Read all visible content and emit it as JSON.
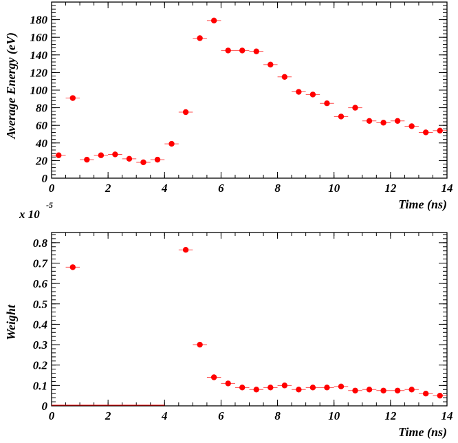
{
  "chart_data": [
    {
      "type": "scatter",
      "xlabel": "Time (ns)",
      "ylabel": "Average Energy (eV)",
      "xlim": [
        0,
        14
      ],
      "ylim": [
        0,
        200
      ],
      "x_ticks": [
        "0",
        "2",
        "4",
        "6",
        "8",
        "10",
        "12",
        "14"
      ],
      "y_ticks": [
        "0",
        "20",
        "40",
        "60",
        "80",
        "100",
        "120",
        "140",
        "160",
        "180"
      ],
      "marker_color": "#ff0000",
      "x_error_halfwidth": 0.25,
      "series": [
        {
          "x": [
            0.25,
            0.75,
            1.25,
            1.75,
            2.25,
            2.75,
            3.25,
            3.75,
            4.25,
            4.75,
            5.25,
            5.75,
            6.25,
            6.75,
            7.25,
            7.75,
            8.25,
            8.75,
            9.25,
            9.75,
            10.25,
            10.75,
            11.25,
            11.75,
            12.25,
            12.75,
            13.25,
            13.75
          ],
          "y": [
            26,
            91,
            21,
            26,
            27,
            22,
            18,
            21,
            39,
            75,
            159,
            179,
            145,
            145,
            144,
            129,
            115,
            98,
            95,
            85,
            70,
            80,
            65,
            63,
            65,
            59,
            52,
            54
          ]
        }
      ]
    },
    {
      "type": "scatter",
      "xlabel": "Time (ns)",
      "ylabel": "Weight",
      "scale_prefix": "x 10",
      "scale_exponent": "-5",
      "xlim": [
        0,
        14
      ],
      "ylim": [
        0,
        0.85
      ],
      "x_ticks": [
        "0",
        "2",
        "4",
        "6",
        "8",
        "10",
        "12",
        "14"
      ],
      "y_ticks": [
        "0",
        "0.1",
        "0.2",
        "0.3",
        "0.4",
        "0.5",
        "0.6",
        "0.7",
        "0.8"
      ],
      "marker_color": "#ff0000",
      "x_error_halfwidth": 0.25,
      "series": [
        {
          "x": [
            0.75,
            4.75,
            5.25,
            5.75,
            6.25,
            6.75,
            7.25,
            7.75,
            8.25,
            8.75,
            9.25,
            9.75,
            10.25,
            10.75,
            11.25,
            11.75,
            12.25,
            12.75,
            13.25,
            13.75
          ],
          "y": [
            0.68,
            0.765,
            0.3,
            0.14,
            0.11,
            0.09,
            0.08,
            0.09,
            0.1,
            0.08,
            0.09,
            0.09,
            0.095,
            0.075,
            0.08,
            0.075,
            0.075,
            0.08,
            0.06,
            0.05
          ]
        }
      ],
      "zero_line_xrange": [
        0,
        4
      ]
    }
  ]
}
